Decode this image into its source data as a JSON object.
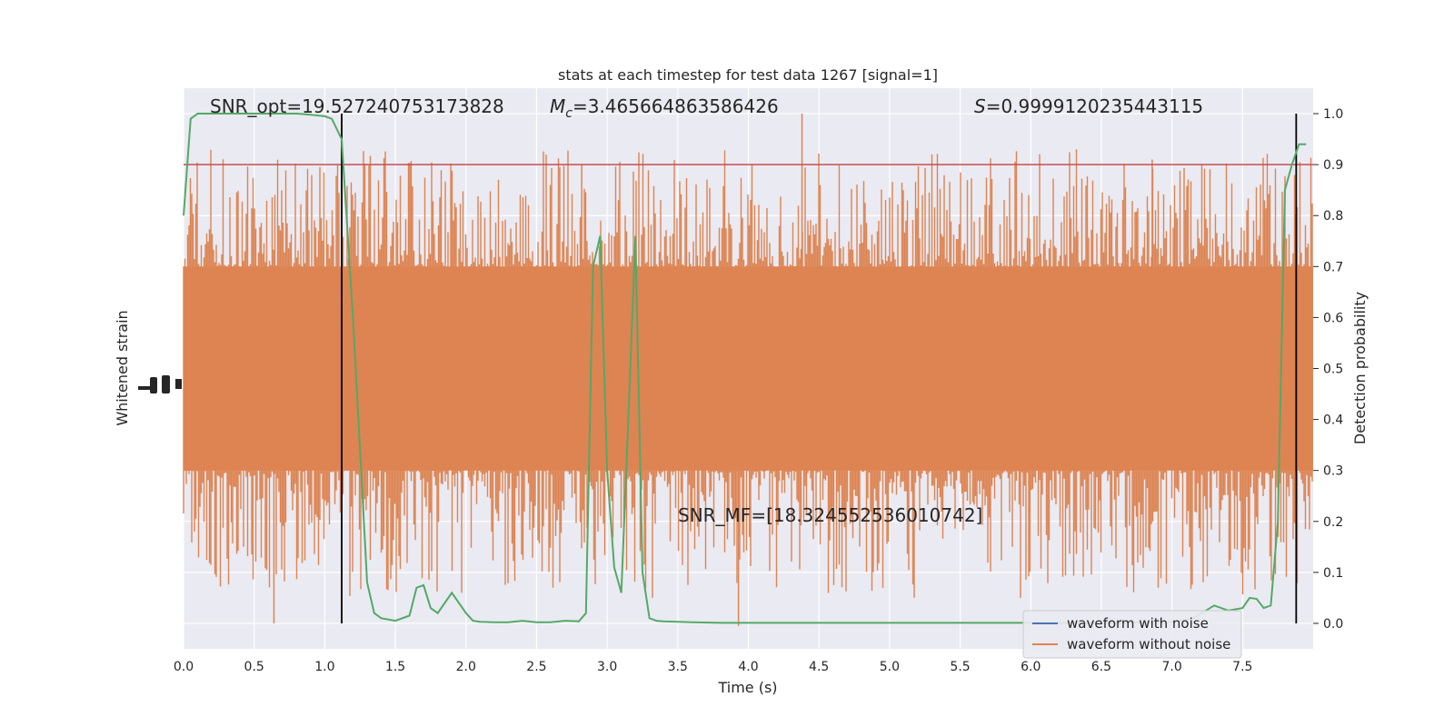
{
  "chart_data": {
    "type": "line",
    "title": "stats at each timestep for test data 1267 [signal=1]",
    "xlabel": "Time (s)",
    "ylabel_left": "Whitened strain",
    "ylabel_right": "Detection probability",
    "xlim": [
      0.0,
      8.0
    ],
    "ylim_right": [
      -0.05,
      1.05
    ],
    "xticks": [
      "0.0",
      "0.5",
      "1.0",
      "1.5",
      "2.0",
      "2.5",
      "3.0",
      "3.5",
      "4.0",
      "4.5",
      "5.0",
      "5.5",
      "6.0",
      "6.5",
      "7.0",
      "7.5"
    ],
    "yticks_right": [
      "0.0",
      "0.1",
      "0.2",
      "0.3",
      "0.4",
      "0.5",
      "0.6",
      "0.7",
      "0.8",
      "0.9",
      "1.0"
    ],
    "grid": true,
    "legend": {
      "placement": "lower right",
      "entries": [
        {
          "label": "waveform with noise",
          "color": "#4c72b0"
        },
        {
          "label": "waveform without noise",
          "color": "#dd8452"
        }
      ]
    },
    "annotations": {
      "snr_opt": "SNR_opt=19.527240753173828",
      "mc_symbol": "M",
      "mc_subscript": "c",
      "mc_value": "=3.465664863586426",
      "s_symbol": "S",
      "s_value": "=0.9999120235443115",
      "snr_mf": "SNR_MF=[18.324552536010742]"
    },
    "threshold": {
      "y": 0.9,
      "color": "#c44e52"
    },
    "vlines": [
      1.12,
      7.88
    ],
    "series": [
      {
        "color": "#55a868",
        "x": [
          0.0,
          0.05,
          0.1,
          0.2,
          0.4,
          0.6,
          0.8,
          0.9,
          1.0,
          1.05,
          1.12,
          1.2,
          1.3,
          1.35,
          1.4,
          1.5,
          1.6,
          1.65,
          1.7,
          1.75,
          1.8,
          1.85,
          1.9,
          2.0,
          2.05,
          2.1,
          2.2,
          2.3,
          2.4,
          2.5,
          2.6,
          2.7,
          2.8,
          2.85,
          2.9,
          2.95,
          3.0,
          3.05,
          3.1,
          3.15,
          3.2,
          3.25,
          3.3,
          3.35,
          3.4,
          3.5,
          3.6,
          3.8,
          4.0,
          4.5,
          5.0,
          5.5,
          6.0,
          6.5,
          7.0,
          7.15,
          7.3,
          7.4,
          7.5,
          7.55,
          7.6,
          7.65,
          7.7,
          7.75,
          7.8,
          7.85,
          7.9,
          7.95
        ],
        "values": [
          0.8,
          0.99,
          1.0,
          1.0,
          1.0,
          1.0,
          1.0,
          0.998,
          0.995,
          0.99,
          0.95,
          0.6,
          0.08,
          0.02,
          0.01,
          0.005,
          0.015,
          0.07,
          0.075,
          0.03,
          0.02,
          0.04,
          0.06,
          0.02,
          0.005,
          0.003,
          0.002,
          0.002,
          0.005,
          0.002,
          0.002,
          0.005,
          0.004,
          0.02,
          0.7,
          0.76,
          0.3,
          0.11,
          0.06,
          0.4,
          0.76,
          0.1,
          0.01,
          0.005,
          0.004,
          0.003,
          0.002,
          0.001,
          0.001,
          0.001,
          0.001,
          0.001,
          0.001,
          0.001,
          0.003,
          0.01,
          0.035,
          0.025,
          0.03,
          0.05,
          0.048,
          0.03,
          0.035,
          0.2,
          0.85,
          0.9,
          0.94,
          0.94
        ]
      }
    ]
  }
}
